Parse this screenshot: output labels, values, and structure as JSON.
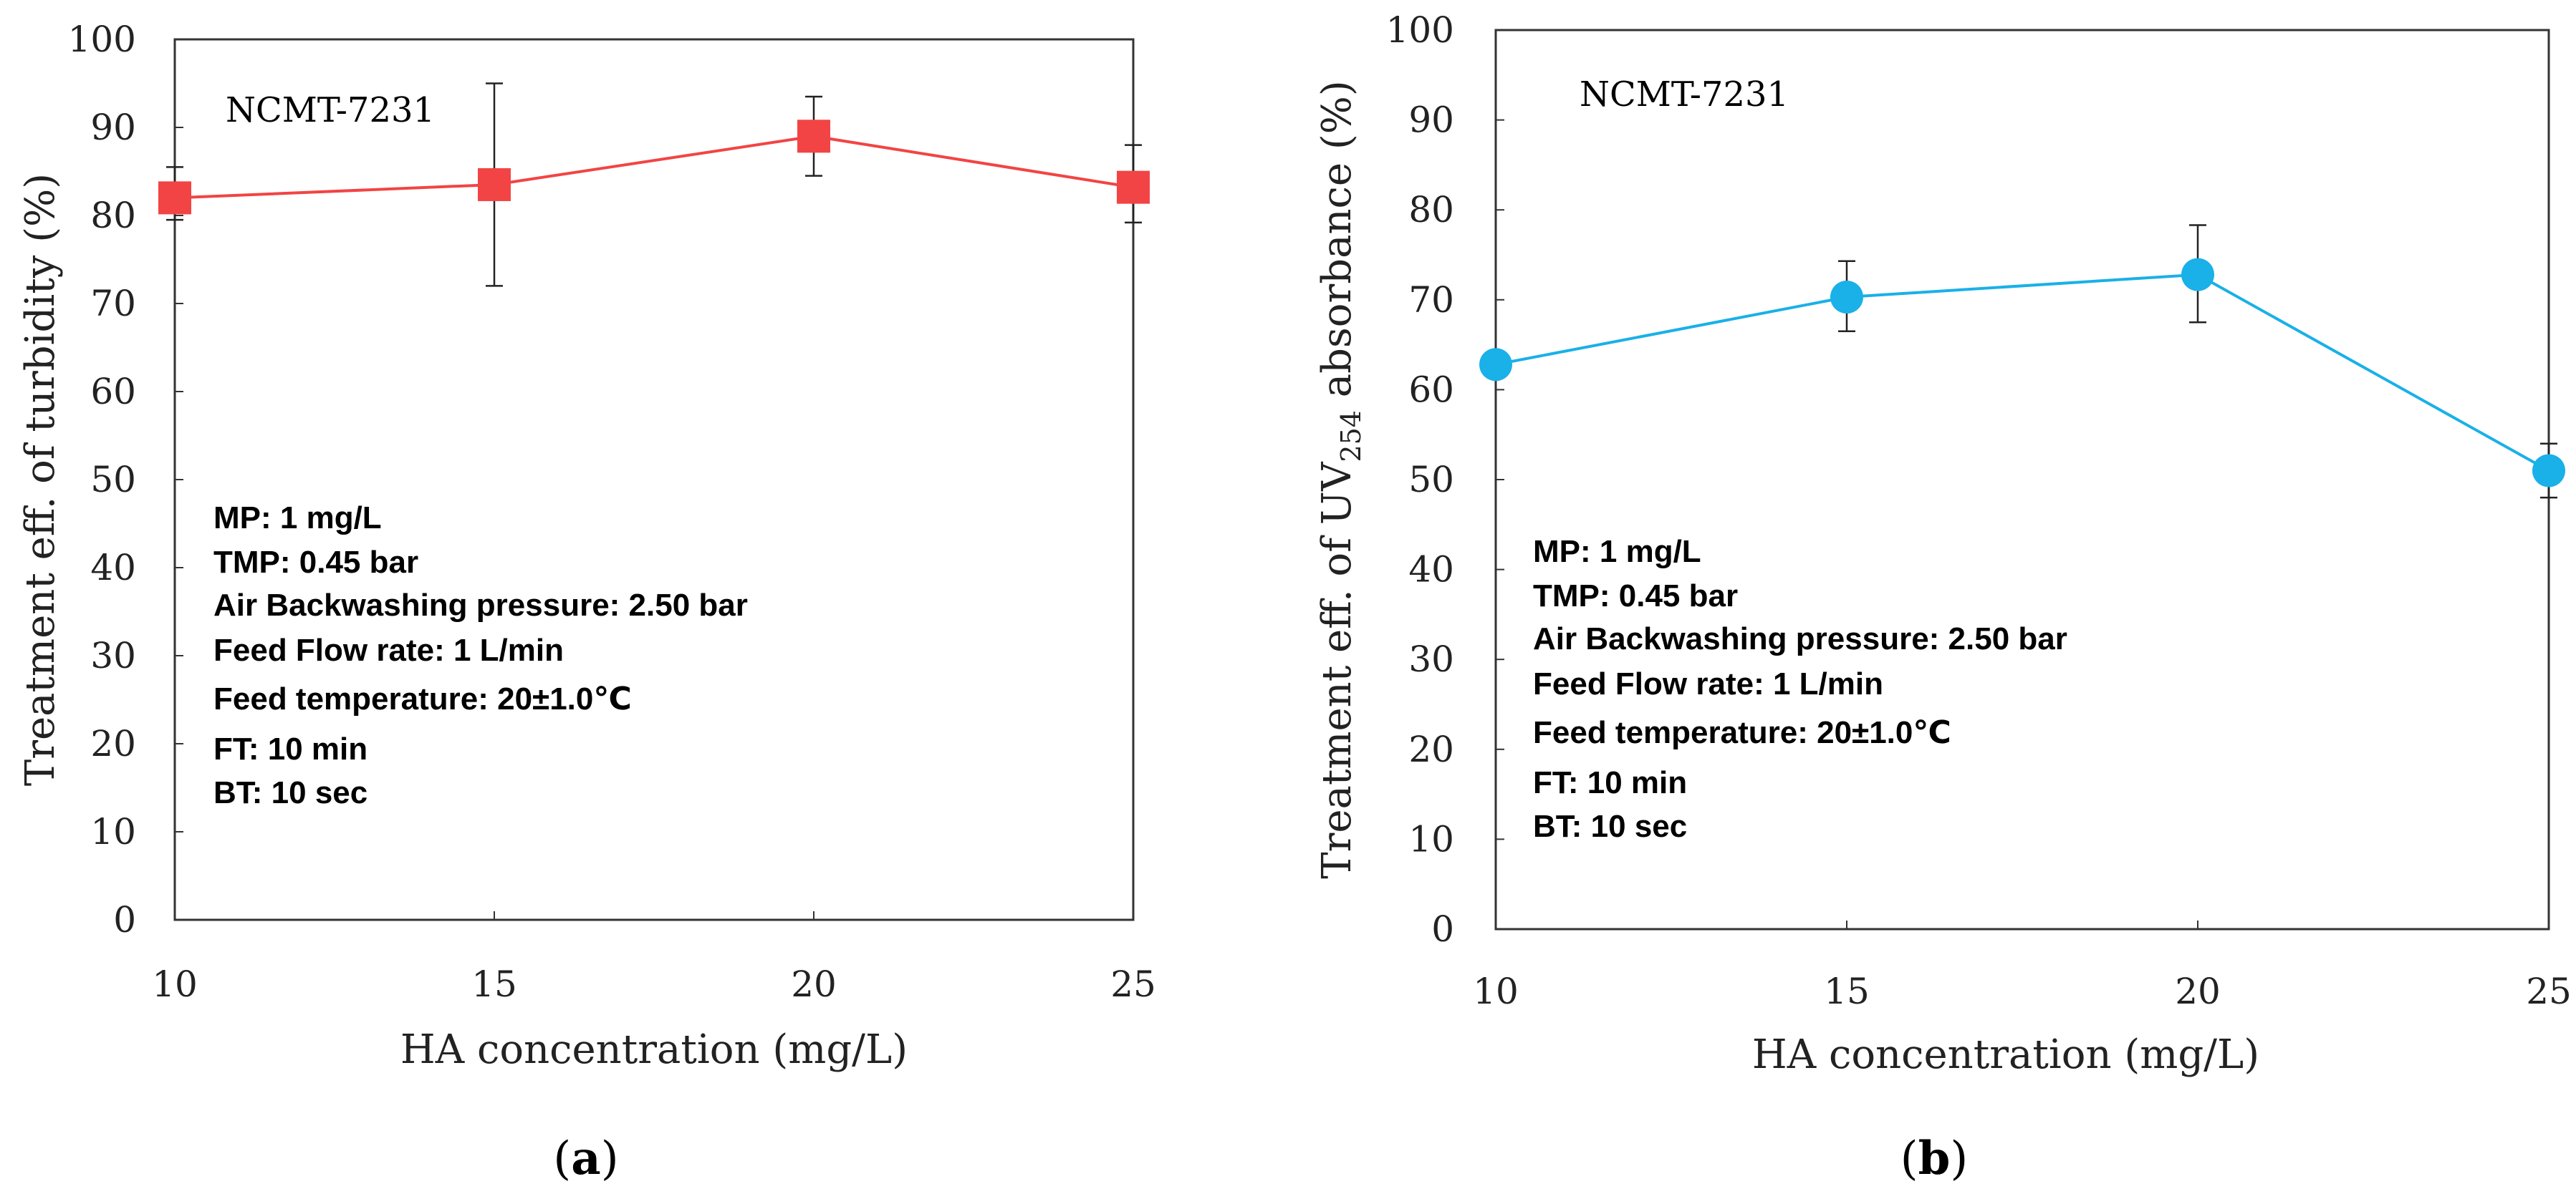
{
  "chart_data": [
    {
      "type": "line",
      "panel_label": "a",
      "xlabel": "HA concentration (mg/L)",
      "ylabel": "Treatment eff. of turbidity (%)",
      "xlim": [
        10,
        25
      ],
      "ylim": [
        0,
        100
      ],
      "xticks": [
        "10",
        "15",
        "20",
        "25"
      ],
      "yticks": [
        "0",
        "10",
        "20",
        "30",
        "40",
        "50",
        "60",
        "70",
        "80",
        "90",
        "100"
      ],
      "marker": "square",
      "color": "#f24444",
      "annotation": "NCMT-7231",
      "series": [
        {
          "name": "NCMT-7231",
          "x": [
            10,
            15,
            20,
            25
          ],
          "values": [
            82,
            83.5,
            89,
            83.2
          ],
          "err_low": [
            79.5,
            72,
            84.5,
            79.2
          ],
          "err_high": [
            85.5,
            95,
            93.5,
            88
          ]
        }
      ],
      "conditions": [
        "MP: 1 mg/L",
        "TMP: 0.45 bar",
        "Air Backwashing pressure: 2.50 bar",
        "Feed Flow rate: 1 L/min",
        "Feed temperature: 20±1.0℃",
        "FT: 10 min",
        "BT: 10 sec"
      ]
    },
    {
      "type": "line",
      "panel_label": "b",
      "xlabel": "HA concentration (mg/L)",
      "ylabel_prefix": "Treatment eff. of UV",
      "ylabel_sub": "254",
      "ylabel_suffix": " absorbance (%)",
      "xlim": [
        10,
        25
      ],
      "ylim": [
        0,
        100
      ],
      "xticks": [
        "10",
        "15",
        "20",
        "25"
      ],
      "yticks": [
        "0",
        "10",
        "20",
        "30",
        "40",
        "50",
        "60",
        "70",
        "80",
        "90",
        "100"
      ],
      "marker": "circle",
      "color": "#1ab0e8",
      "annotation": "NCMT-7231",
      "series": [
        {
          "name": "NCMT-7231",
          "x": [
            10,
            15,
            20,
            25
          ],
          "values": [
            62.8,
            70.3,
            72.8,
            51
          ],
          "err_low": [
            null,
            66.5,
            67.5,
            48
          ],
          "err_high": [
            null,
            74.3,
            78.3,
            54
          ]
        }
      ],
      "conditions": [
        "MP: 1 mg/L",
        "TMP: 0.45 bar",
        "Air Backwashing pressure: 2.50 bar",
        "Feed Flow rate: 1 L/min",
        "Feed temperature: 20±1.0℃",
        "FT: 10 min",
        "BT: 10 sec"
      ]
    }
  ]
}
